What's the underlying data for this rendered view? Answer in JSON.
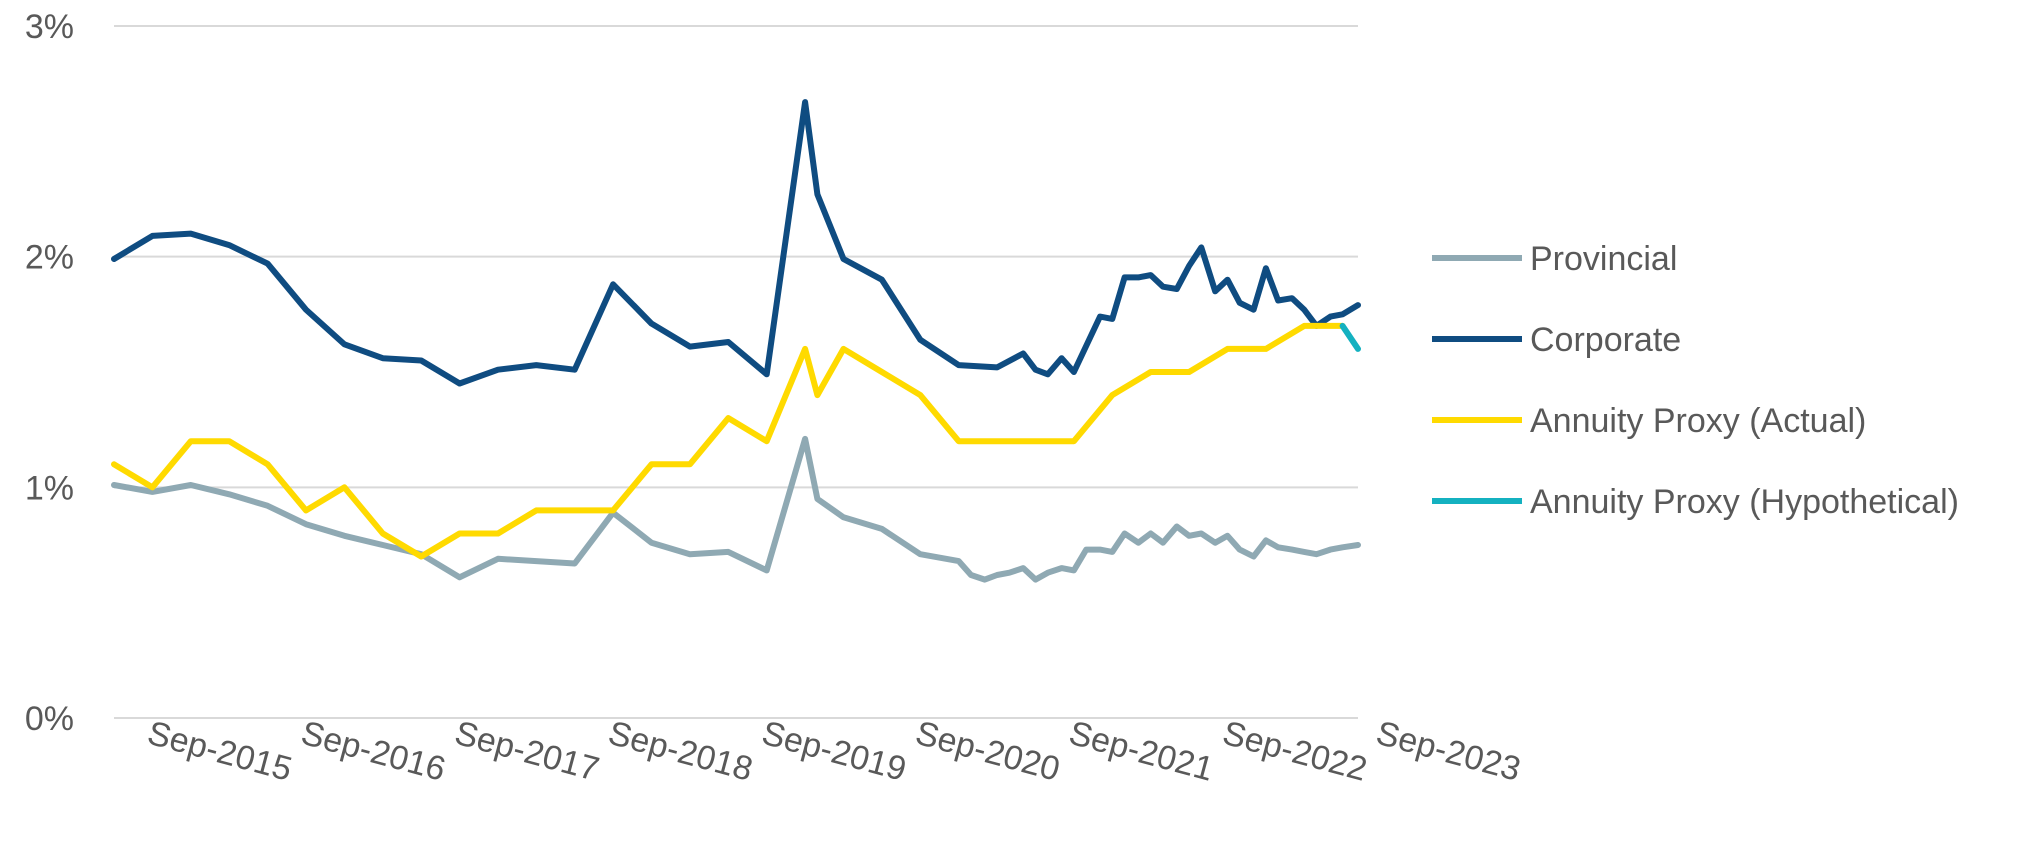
{
  "chart_data": {
    "type": "line",
    "title": "",
    "xlabel": "",
    "ylabel": "",
    "ylim": [
      0,
      3
    ],
    "yticks": [
      {
        "value": 0,
        "label": "0%"
      },
      {
        "value": 1,
        "label": "1%"
      },
      {
        "value": 2,
        "label": "2%"
      },
      {
        "value": 3,
        "label": "3%"
      }
    ],
    "xticks": [
      {
        "value": 2015.67,
        "label": "Sep-2015"
      },
      {
        "value": 2016.67,
        "label": "Sep-2016"
      },
      {
        "value": 2017.67,
        "label": "Sep-2017"
      },
      {
        "value": 2018.67,
        "label": "Sep-2018"
      },
      {
        "value": 2019.67,
        "label": "Sep-2019"
      },
      {
        "value": 2020.67,
        "label": "Sep-2020"
      },
      {
        "value": 2021.67,
        "label": "Sep-2021"
      },
      {
        "value": 2022.67,
        "label": "Sep-2022"
      },
      {
        "value": 2023.67,
        "label": "Sep-2023"
      }
    ],
    "xlim": [
      2015.0,
      2023.1
    ],
    "grid": true,
    "legend": "right",
    "series": [
      {
        "name": "Provincial",
        "color": "#8FA9B3",
        "points": [
          [
            2015.0,
            1.01
          ],
          [
            2015.25,
            0.98
          ],
          [
            2015.5,
            1.01
          ],
          [
            2015.75,
            0.97
          ],
          [
            2016.0,
            0.92
          ],
          [
            2016.25,
            0.84
          ],
          [
            2016.5,
            0.79
          ],
          [
            2016.75,
            0.75
          ],
          [
            2017.0,
            0.71
          ],
          [
            2017.25,
            0.61
          ],
          [
            2017.5,
            0.69
          ],
          [
            2017.75,
            0.68
          ],
          [
            2018.0,
            0.67
          ],
          [
            2018.25,
            0.89
          ],
          [
            2018.5,
            0.76
          ],
          [
            2018.75,
            0.71
          ],
          [
            2019.0,
            0.72
          ],
          [
            2019.25,
            0.64
          ],
          [
            2019.5,
            1.21
          ],
          [
            2019.58,
            0.95
          ],
          [
            2019.75,
            0.87
          ],
          [
            2020.0,
            0.82
          ],
          [
            2020.25,
            0.71
          ],
          [
            2020.5,
            0.68
          ],
          [
            2020.58,
            0.62
          ],
          [
            2020.67,
            0.6
          ],
          [
            2020.75,
            0.62
          ],
          [
            2020.83,
            0.63
          ],
          [
            2020.92,
            0.65
          ],
          [
            2021.0,
            0.6
          ],
          [
            2021.08,
            0.63
          ],
          [
            2021.17,
            0.65
          ],
          [
            2021.25,
            0.64
          ],
          [
            2021.33,
            0.73
          ],
          [
            2021.42,
            0.73
          ],
          [
            2021.5,
            0.72
          ],
          [
            2021.58,
            0.8
          ],
          [
            2021.67,
            0.76
          ],
          [
            2021.75,
            0.8
          ],
          [
            2021.83,
            0.76
          ],
          [
            2021.92,
            0.83
          ],
          [
            2022.0,
            0.79
          ],
          [
            2022.08,
            0.8
          ],
          [
            2022.17,
            0.76
          ],
          [
            2022.25,
            0.79
          ],
          [
            2022.33,
            0.73
          ],
          [
            2022.42,
            0.7
          ],
          [
            2022.5,
            0.77
          ],
          [
            2022.58,
            0.74
          ],
          [
            2022.67,
            0.73
          ],
          [
            2022.75,
            0.72
          ],
          [
            2022.83,
            0.71
          ],
          [
            2022.92,
            0.73
          ],
          [
            2023.0,
            0.74
          ],
          [
            2023.1,
            0.75
          ]
        ]
      },
      {
        "name": "Corporate",
        "color": "#0F4C81",
        "points": [
          [
            2015.0,
            1.99
          ],
          [
            2015.25,
            2.09
          ],
          [
            2015.5,
            2.1
          ],
          [
            2015.75,
            2.05
          ],
          [
            2016.0,
            1.97
          ],
          [
            2016.25,
            1.77
          ],
          [
            2016.5,
            1.62
          ],
          [
            2016.75,
            1.56
          ],
          [
            2017.0,
            1.55
          ],
          [
            2017.25,
            1.45
          ],
          [
            2017.5,
            1.51
          ],
          [
            2017.75,
            1.53
          ],
          [
            2018.0,
            1.51
          ],
          [
            2018.25,
            1.88
          ],
          [
            2018.5,
            1.71
          ],
          [
            2018.75,
            1.61
          ],
          [
            2019.0,
            1.63
          ],
          [
            2019.25,
            1.49
          ],
          [
            2019.5,
            2.67
          ],
          [
            2019.58,
            2.27
          ],
          [
            2019.75,
            1.99
          ],
          [
            2020.0,
            1.9
          ],
          [
            2020.25,
            1.64
          ],
          [
            2020.5,
            1.53
          ],
          [
            2020.75,
            1.52
          ],
          [
            2020.92,
            1.58
          ],
          [
            2021.0,
            1.51
          ],
          [
            2021.08,
            1.49
          ],
          [
            2021.17,
            1.56
          ],
          [
            2021.25,
            1.5
          ],
          [
            2021.42,
            1.74
          ],
          [
            2021.5,
            1.73
          ],
          [
            2021.58,
            1.91
          ],
          [
            2021.67,
            1.91
          ],
          [
            2021.75,
            1.92
          ],
          [
            2021.83,
            1.87
          ],
          [
            2021.92,
            1.86
          ],
          [
            2022.0,
            1.96
          ],
          [
            2022.08,
            2.04
          ],
          [
            2022.17,
            1.85
          ],
          [
            2022.25,
            1.9
          ],
          [
            2022.33,
            1.8
          ],
          [
            2022.42,
            1.77
          ],
          [
            2022.5,
            1.95
          ],
          [
            2022.58,
            1.81
          ],
          [
            2022.67,
            1.82
          ],
          [
            2022.75,
            1.77
          ],
          [
            2022.83,
            1.7
          ],
          [
            2022.92,
            1.74
          ],
          [
            2023.0,
            1.75
          ],
          [
            2023.1,
            1.79
          ]
        ]
      },
      {
        "name": "Annuity Proxy (Actual)",
        "color": "#FFDA00",
        "points": [
          [
            2015.0,
            1.1
          ],
          [
            2015.25,
            1.0
          ],
          [
            2015.5,
            1.2
          ],
          [
            2015.75,
            1.2
          ],
          [
            2016.0,
            1.1
          ],
          [
            2016.25,
            0.9
          ],
          [
            2016.5,
            1.0
          ],
          [
            2016.75,
            0.8
          ],
          [
            2017.0,
            0.7
          ],
          [
            2017.25,
            0.8
          ],
          [
            2017.5,
            0.8
          ],
          [
            2017.75,
            0.9
          ],
          [
            2018.0,
            0.9
          ],
          [
            2018.25,
            0.9
          ],
          [
            2018.5,
            1.1
          ],
          [
            2018.75,
            1.1
          ],
          [
            2019.0,
            1.3
          ],
          [
            2019.25,
            1.2
          ],
          [
            2019.5,
            1.6
          ],
          [
            2019.58,
            1.4
          ],
          [
            2019.75,
            1.6
          ],
          [
            2020.0,
            1.5
          ],
          [
            2020.25,
            1.4
          ],
          [
            2020.5,
            1.2
          ],
          [
            2020.75,
            1.2
          ],
          [
            2021.0,
            1.2
          ],
          [
            2021.25,
            1.2
          ],
          [
            2021.5,
            1.4
          ],
          [
            2021.75,
            1.5
          ],
          [
            2022.0,
            1.5
          ],
          [
            2022.25,
            1.6
          ],
          [
            2022.5,
            1.6
          ],
          [
            2022.75,
            1.7
          ],
          [
            2023.0,
            1.7
          ]
        ]
      },
      {
        "name": "Annuity Proxy (Hypothetical)",
        "color": "#14B1C0",
        "points": [
          [
            2023.0,
            1.7
          ],
          [
            2023.1,
            1.6
          ]
        ]
      }
    ]
  }
}
